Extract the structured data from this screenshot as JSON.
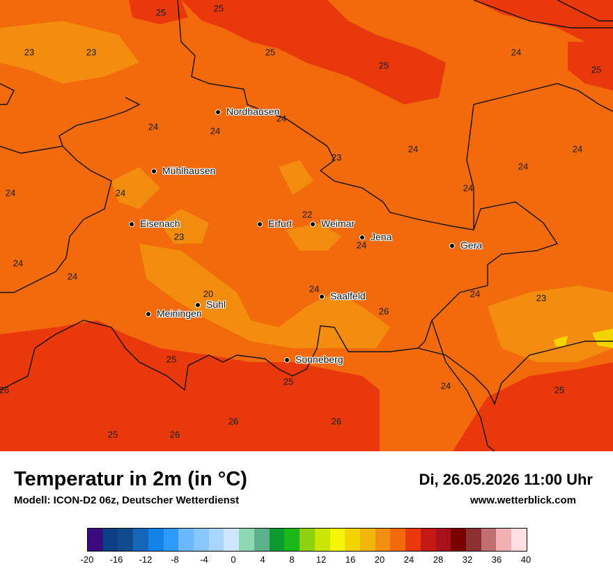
{
  "title": "Temperatur in 2m (in °C)",
  "model": "Modell: ICON-D2 06z, Deutscher Wetterdienst",
  "datetime": "Di, 26.05.2026 11:00 Uhr",
  "website": "www.wetterblick.com",
  "cities": [
    {
      "id": "nordhausen",
      "name": "Nordhausen"
    },
    {
      "id": "muehlhausen",
      "name": "Mühlhausen"
    },
    {
      "id": "eisenach",
      "name": "Eisenach"
    },
    {
      "id": "erfurt",
      "name": "Erfurt"
    },
    {
      "id": "weimar",
      "name": "Weimar"
    },
    {
      "id": "jena",
      "name": "Jena"
    },
    {
      "id": "gera",
      "name": "Gera"
    },
    {
      "id": "suhl",
      "name": "Suhl"
    },
    {
      "id": "meiningen",
      "name": "Meiningen"
    },
    {
      "id": "saalfeld",
      "name": "Saalfeld"
    },
    {
      "id": "sonneberg",
      "name": "Sonneberg"
    }
  ],
  "values": [
    "25",
    "25",
    "23",
    "23",
    "25",
    "24",
    "25",
    "25",
    "24",
    "24",
    "24",
    "24",
    "23",
    "24",
    "24",
    "24",
    "24",
    "24",
    "22",
    "23",
    "24",
    "24",
    "24",
    "20",
    "24",
    "24",
    "23",
    "25",
    "25",
    "26",
    "24",
    "25",
    "26",
    "26",
    "26",
    "25",
    "26"
  ],
  "legend": {
    "colors": [
      "#3b0a7f",
      "#0d3f86",
      "#114a8e",
      "#1565b8",
      "#1282e8",
      "#2c9bff",
      "#6cb8ff",
      "#88c6ff",
      "#a8d5ff",
      "#cfe6ff",
      "#8fd8b4",
      "#5cb08a",
      "#0b9a32",
      "#1cb81a",
      "#8ed10e",
      "#c9e502",
      "#f4f701",
      "#f2d400",
      "#f2b60a",
      "#f28e10",
      "#f26a0c",
      "#e8380c",
      "#c21a12",
      "#a8101a",
      "#780000",
      "#8a3030",
      "#c07070",
      "#f2b0b0",
      "#ffe0e0"
    ],
    "ticks": [
      "-20",
      "-16",
      "-12",
      "-8",
      "-4",
      "0",
      "4",
      "8",
      "12",
      "16",
      "20",
      "24",
      "28",
      "32",
      "36",
      "40"
    ]
  }
}
